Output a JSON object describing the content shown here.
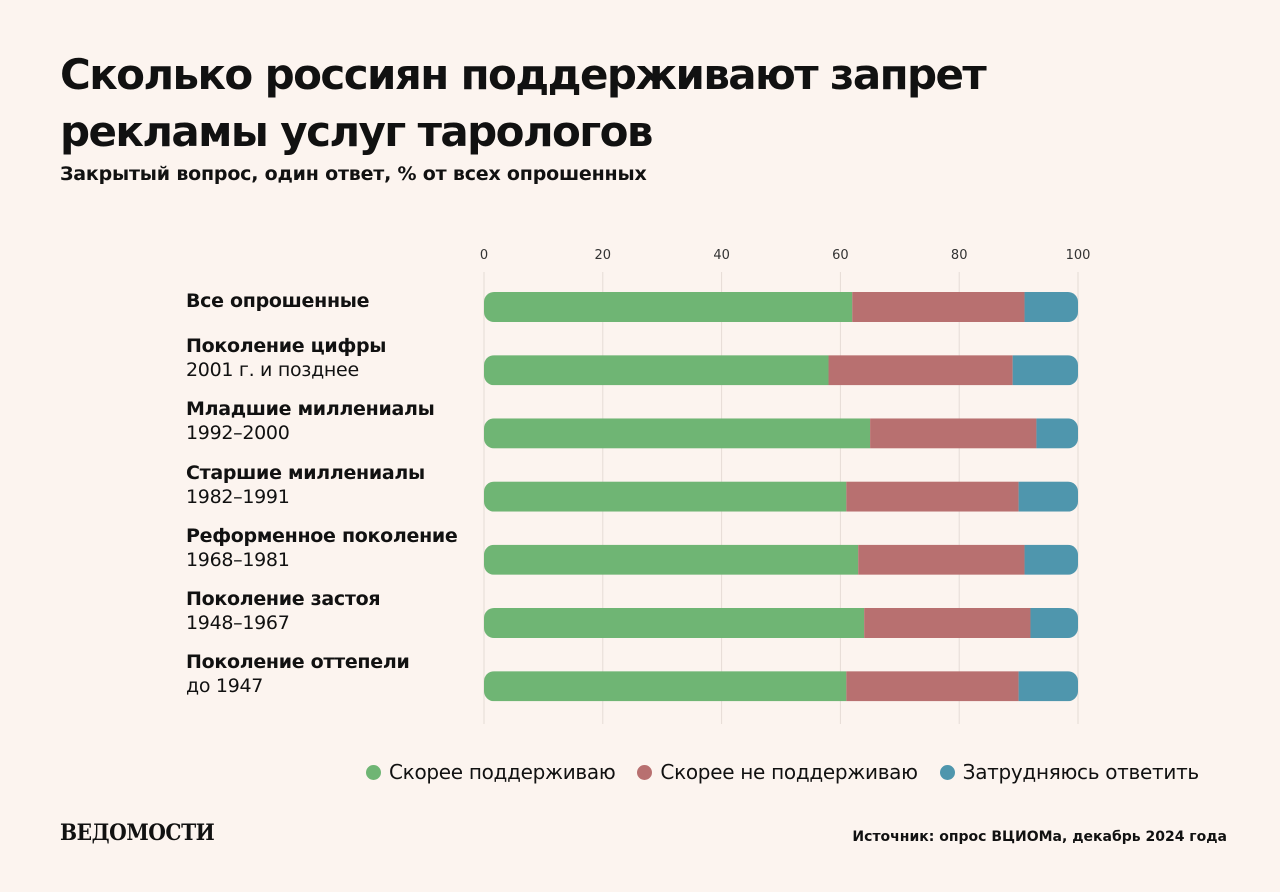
{
  "title": "Сколько россиян поддерживают запрет рекламы услуг тарологов",
  "subtitle": "Закрытый вопрос, один ответ, % от всех опрошенных",
  "logo": "ВЕДОМОСТИ",
  "source": "Источник: опрос ВЦИОМа, декабрь 2024 года",
  "colors": {
    "support": "#6fb574",
    "not_support": "#b87070",
    "hard_to_say": "#4f96ad",
    "grid": "#e5dcd6",
    "background": "#fcf4ef"
  },
  "chart_data": {
    "type": "bar",
    "orientation": "horizontal",
    "stacked": true,
    "x_ticks": [
      "0",
      "20",
      "40",
      "60",
      "80",
      "100"
    ],
    "xlim": [
      0,
      100
    ],
    "grid": true,
    "legend_position": "bottom",
    "categories": [
      {
        "label": "Все опрошенные",
        "sublabel": ""
      },
      {
        "label": "Поколение цифры",
        "sublabel": "2001 г. и позднее"
      },
      {
        "label": "Младшие миллениалы",
        "sublabel": "1992–2000"
      },
      {
        "label": "Старшие миллениалы",
        "sublabel": "1982–1991"
      },
      {
        "label": "Реформенное поколение",
        "sublabel": "1968–1981"
      },
      {
        "label": "Поколение застоя",
        "sublabel": "1948–1967"
      },
      {
        "label": "Поколение оттепели",
        "sublabel": "до 1947"
      }
    ],
    "series": [
      {
        "name": "Скорее поддерживаю",
        "color_key": "support",
        "values": [
          62,
          58,
          65,
          61,
          63,
          64,
          61
        ]
      },
      {
        "name": "Скорее не поддерживаю",
        "color_key": "not_support",
        "values": [
          29,
          31,
          28,
          29,
          28,
          28,
          29
        ]
      },
      {
        "name": "Затрудняюсь ответить",
        "color_key": "hard_to_say",
        "values": [
          9,
          11,
          7,
          10,
          9,
          8,
          10
        ]
      }
    ]
  }
}
